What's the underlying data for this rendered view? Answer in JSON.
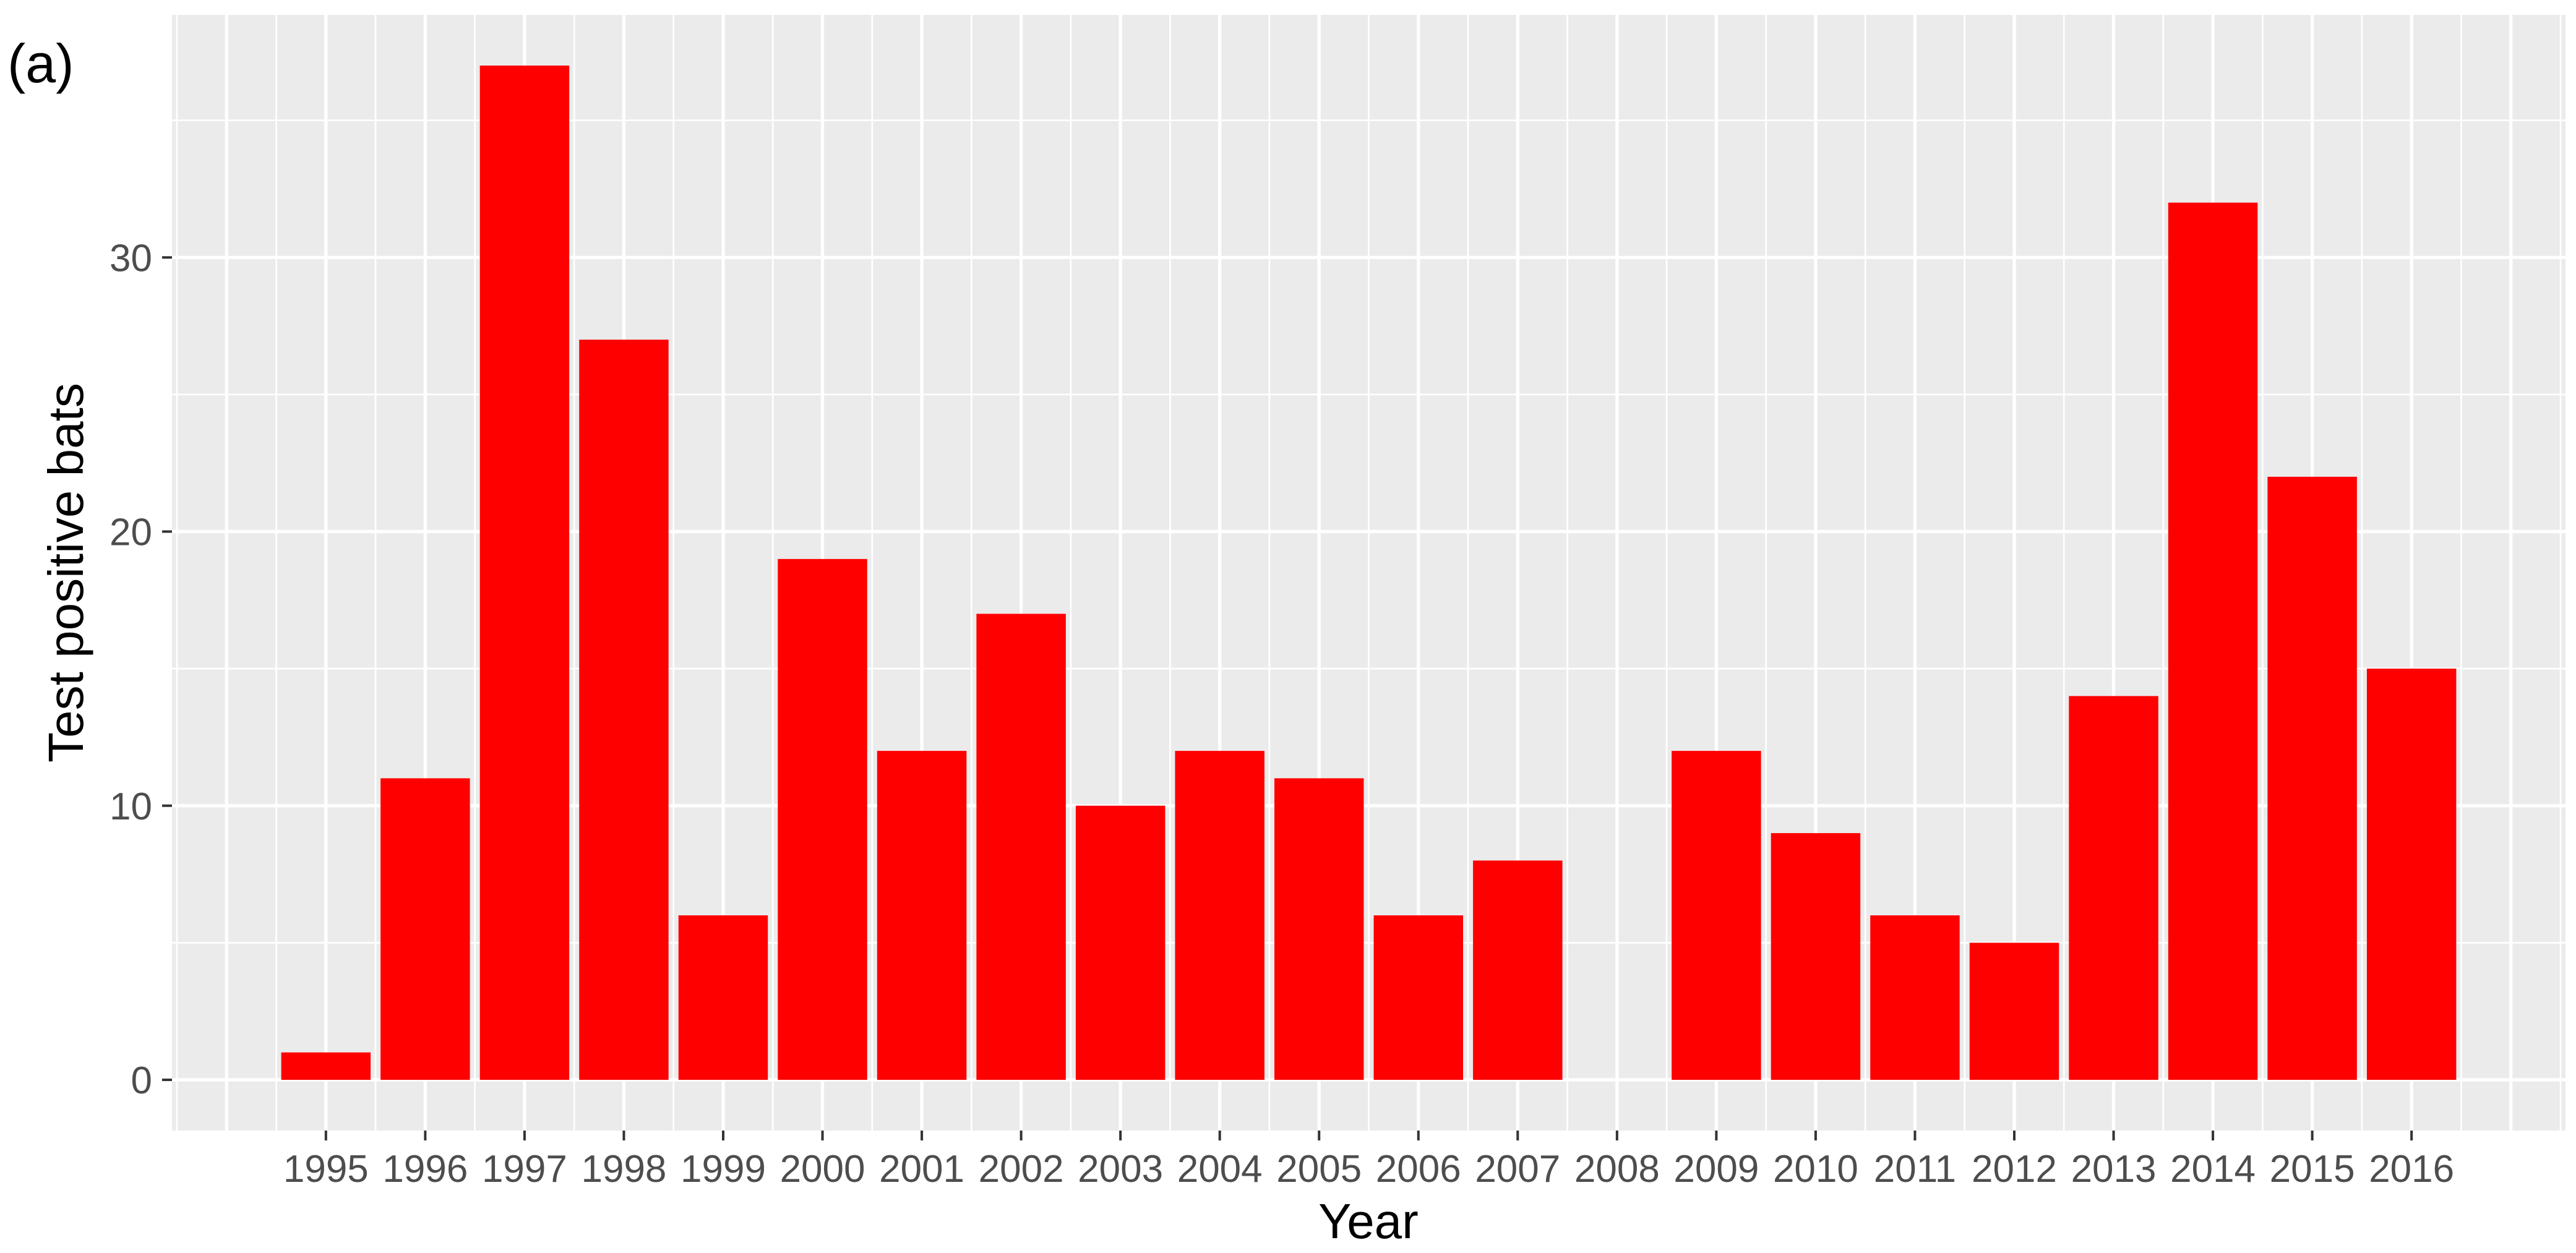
{
  "panel_label": "(a)",
  "chart_data": {
    "type": "bar",
    "x": [
      1995,
      1996,
      1997,
      1998,
      1999,
      2000,
      2001,
      2002,
      2003,
      2004,
      2005,
      2006,
      2007,
      2008,
      2009,
      2010,
      2011,
      2012,
      2013,
      2014,
      2015,
      2016
    ],
    "y": [
      1,
      11,
      37,
      27,
      6,
      19,
      12,
      17,
      10,
      12,
      11,
      6,
      8,
      0,
      12,
      9,
      6,
      5,
      14,
      32,
      22,
      15
    ],
    "xlabel": "Year",
    "ylabel": "Test positive bats",
    "xlim": [
      1993.45,
      2017.55
    ],
    "ylim": [
      -1.85,
      38.85
    ],
    "yticks": [
      0,
      10,
      20,
      30
    ],
    "grid": true,
    "legend": "none",
    "colors": {
      "bar": "#FF0000",
      "panel_background": "#EBEBEB",
      "grid": "#FFFFFF",
      "tick": "#333333",
      "tick_label": "#4D4D4D",
      "axis_title": "#000000"
    }
  }
}
